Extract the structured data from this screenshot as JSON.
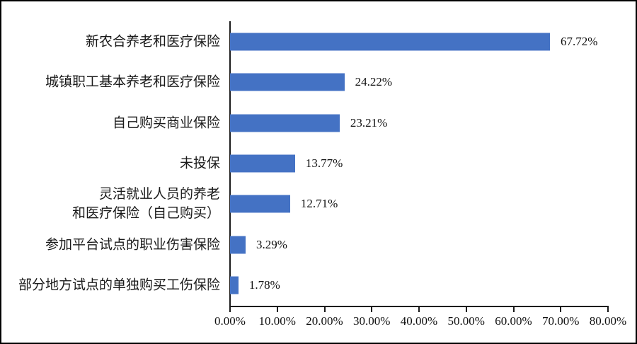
{
  "chart_data": {
    "type": "bar",
    "orientation": "horizontal",
    "title": "",
    "xlabel": "",
    "ylabel": "",
    "xlim": [
      0,
      80
    ],
    "grid": false,
    "legend": null,
    "bar_color": "#4472C4",
    "categories": [
      "新农合养老和医疗保险",
      "城镇职工基本养老和医疗保险",
      "自己购买商业保险",
      "未投保",
      "灵活就业人员的养老\n和医疗保险（自己购买）",
      "参加平台试点的职业伤害保险",
      "部分地方试点的单独购买工伤保险"
    ],
    "values": [
      67.72,
      24.22,
      23.21,
      13.77,
      12.71,
      3.29,
      1.78
    ],
    "value_labels": [
      "67.72%",
      "24.22%",
      "23.21%",
      "13.77%",
      "12.71%",
      "3.29%",
      "1.78%"
    ],
    "x_ticks": [
      "0.00%",
      "10.00%",
      "20.00%",
      "30.00%",
      "40.00%",
      "50.00%",
      "60.00%",
      "70.00%",
      "80.00%"
    ],
    "x_tick_values": [
      0,
      10,
      20,
      30,
      40,
      50,
      60,
      70,
      80
    ]
  }
}
